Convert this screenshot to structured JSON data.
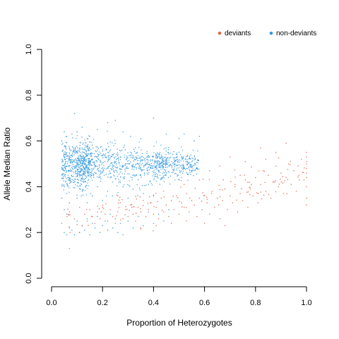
{
  "chart_data": {
    "type": "scatter",
    "xlabel": "Proportion of Heterozygotes",
    "ylabel": "Allele Median Ratio",
    "xlim": [
      0,
      1
    ],
    "ylim": [
      0,
      1
    ],
    "x_ticks": [
      "0.0",
      "0.2",
      "0.4",
      "0.6",
      "0.8",
      "1.0"
    ],
    "y_ticks": [
      "0.0",
      "0.2",
      "0.4",
      "0.6",
      "0.8",
      "1.0"
    ],
    "grid": false,
    "legend_position": "top-right",
    "series": [
      {
        "name": "deviants",
        "color": "#e8664a",
        "points": [
          [
            0.06,
            0.27
          ],
          [
            0.07,
            0.29
          ],
          [
            0.09,
            0.26
          ],
          [
            0.11,
            0.31
          ],
          [
            0.12,
            0.23
          ],
          [
            0.13,
            0.28
          ],
          [
            0.14,
            0.25
          ],
          [
            0.15,
            0.3
          ],
          [
            0.16,
            0.27
          ],
          [
            0.17,
            0.24
          ],
          [
            0.18,
            0.29
          ],
          [
            0.19,
            0.26
          ],
          [
            0.2,
            0.31
          ],
          [
            0.21,
            0.28
          ],
          [
            0.22,
            0.25
          ],
          [
            0.23,
            0.3
          ],
          [
            0.24,
            0.27
          ],
          [
            0.25,
            0.24
          ],
          [
            0.26,
            0.29
          ],
          [
            0.27,
            0.33
          ],
          [
            0.28,
            0.26
          ],
          [
            0.29,
            0.3
          ],
          [
            0.3,
            0.27
          ],
          [
            0.31,
            0.32
          ],
          [
            0.32,
            0.28
          ],
          [
            0.33,
            0.25
          ],
          [
            0.34,
            0.31
          ],
          [
            0.35,
            0.29
          ],
          [
            0.36,
            0.34
          ],
          [
            0.37,
            0.27
          ],
          [
            0.38,
            0.3
          ],
          [
            0.39,
            0.33
          ],
          [
            0.4,
            0.28
          ],
          [
            0.41,
            0.31
          ],
          [
            0.42,
            0.26
          ],
          [
            0.43,
            0.35
          ],
          [
            0.44,
            0.29
          ],
          [
            0.45,
            0.32
          ],
          [
            0.46,
            0.27
          ],
          [
            0.47,
            0.34
          ],
          [
            0.48,
            0.3
          ],
          [
            0.49,
            0.36
          ],
          [
            0.5,
            0.28
          ],
          [
            0.51,
            0.33
          ],
          [
            0.52,
            0.31
          ],
          [
            0.53,
            0.37
          ],
          [
            0.54,
            0.29
          ],
          [
            0.55,
            0.34
          ],
          [
            0.56,
            0.32
          ],
          [
            0.57,
            0.27
          ],
          [
            0.58,
            0.35
          ],
          [
            0.59,
            0.3
          ],
          [
            0.6,
            0.36
          ],
          [
            0.61,
            0.33
          ],
          [
            0.62,
            0.28
          ],
          [
            0.63,
            0.38
          ],
          [
            0.64,
            0.31
          ],
          [
            0.65,
            0.35
          ],
          [
            0.66,
            0.26
          ],
          [
            0.67,
            0.34
          ],
          [
            0.68,
            0.39
          ],
          [
            0.69,
            0.3
          ],
          [
            0.7,
            0.36
          ],
          [
            0.71,
            0.33
          ],
          [
            0.72,
            0.41
          ],
          [
            0.73,
            0.29
          ],
          [
            0.74,
            0.37
          ],
          [
            0.75,
            0.34
          ],
          [
            0.76,
            0.43
          ],
          [
            0.77,
            0.31
          ],
          [
            0.78,
            0.39
          ],
          [
            0.79,
            0.36
          ],
          [
            0.8,
            0.44
          ],
          [
            0.81,
            0.33
          ],
          [
            0.82,
            0.41
          ],
          [
            0.83,
            0.47
          ],
          [
            0.84,
            0.38
          ],
          [
            0.85,
            0.45
          ],
          [
            0.86,
            0.35
          ],
          [
            0.87,
            0.42
          ],
          [
            0.88,
            0.49
          ],
          [
            0.89,
            0.4
          ],
          [
            0.9,
            0.46
          ],
          [
            0.91,
            0.37
          ],
          [
            0.92,
            0.44
          ],
          [
            0.93,
            0.5
          ],
          [
            0.94,
            0.41
          ],
          [
            0.95,
            0.47
          ],
          [
            0.96,
            0.38
          ],
          [
            0.97,
            0.45
          ],
          [
            0.98,
            0.52
          ],
          [
            0.99,
            0.43
          ],
          [
            1.0,
            0.48
          ],
          [
            1.0,
            0.5
          ],
          [
            1.0,
            0.46
          ],
          [
            1.0,
            0.53
          ],
          [
            1.0,
            0.44
          ],
          [
            1.0,
            0.51
          ],
          [
            1.0,
            0.35
          ],
          [
            1.0,
            0.4
          ],
          [
            1.0,
            0.55
          ],
          [
            1.0,
            0.32
          ],
          [
            0.62,
            0.47
          ],
          [
            0.7,
            0.53
          ],
          [
            0.76,
            0.51
          ],
          [
            0.82,
            0.57
          ],
          [
            0.88,
            0.55
          ],
          [
            0.92,
            0.59
          ],
          [
            0.58,
            0.43
          ],
          [
            0.66,
            0.49
          ],
          [
            0.74,
            0.45
          ],
          [
            0.84,
            0.52
          ],
          [
            0.35,
            0.22
          ],
          [
            0.41,
            0.23
          ],
          [
            0.47,
            0.24
          ],
          [
            0.53,
            0.25
          ],
          [
            0.44,
            0.38
          ],
          [
            0.52,
            0.41
          ],
          [
            0.6,
            0.24
          ],
          [
            0.68,
            0.23
          ]
        ]
      },
      {
        "name": "non-deviants",
        "color": "#3399e0",
        "points": [
          [
            0.04,
            0.24
          ],
          [
            0.05,
            0.2
          ],
          [
            0.06,
            0.19
          ],
          [
            0.07,
            0.22
          ],
          [
            0.05,
            0.3
          ],
          [
            0.04,
            0.35
          ],
          [
            0.06,
            0.28
          ],
          [
            0.05,
            0.4
          ],
          [
            0.07,
            0.33
          ],
          [
            0.06,
            0.37
          ],
          [
            0.08,
            0.21
          ],
          [
            0.09,
            0.19
          ],
          [
            0.1,
            0.25
          ],
          [
            0.11,
            0.2
          ],
          [
            0.12,
            0.23
          ],
          [
            0.13,
            0.21
          ],
          [
            0.14,
            0.26
          ],
          [
            0.15,
            0.19
          ],
          [
            0.16,
            0.24
          ],
          [
            0.17,
            0.22
          ],
          [
            0.18,
            0.27
          ],
          [
            0.19,
            0.2
          ],
          [
            0.2,
            0.23
          ],
          [
            0.21,
            0.25
          ],
          [
            0.22,
            0.21
          ],
          [
            0.23,
            0.28
          ],
          [
            0.24,
            0.22
          ],
          [
            0.25,
            0.26
          ],
          [
            0.26,
            0.2
          ],
          [
            0.27,
            0.24
          ],
          [
            0.28,
            0.19
          ],
          [
            0.3,
            0.25
          ],
          [
            0.32,
            0.22
          ],
          [
            0.34,
            0.27
          ],
          [
            0.36,
            0.23
          ],
          [
            0.38,
            0.29
          ],
          [
            0.4,
            0.24
          ],
          [
            0.42,
            0.28
          ],
          [
            0.44,
            0.25
          ],
          [
            0.46,
            0.3
          ],
          [
            0.1,
            0.35
          ],
          [
            0.12,
            0.38
          ],
          [
            0.14,
            0.33
          ],
          [
            0.16,
            0.36
          ],
          [
            0.18,
            0.4
          ],
          [
            0.2,
            0.34
          ],
          [
            0.22,
            0.38
          ],
          [
            0.24,
            0.42
          ],
          [
            0.26,
            0.36
          ],
          [
            0.28,
            0.4
          ],
          [
            0.3,
            0.35
          ],
          [
            0.32,
            0.39
          ],
          [
            0.34,
            0.43
          ],
          [
            0.36,
            0.37
          ],
          [
            0.38,
            0.41
          ],
          [
            0.4,
            0.36
          ],
          [
            0.09,
            0.72
          ],
          [
            0.12,
            0.66
          ],
          [
            0.1,
            0.64
          ],
          [
            0.22,
            0.68
          ],
          [
            0.25,
            0.69
          ],
          [
            0.31,
            0.62
          ],
          [
            0.4,
            0.7
          ],
          [
            0.45,
            0.63
          ],
          [
            0.05,
            0.64
          ],
          [
            0.06,
            0.62
          ],
          [
            0.04,
            0.6
          ],
          [
            0.08,
            0.63
          ],
          [
            0.15,
            0.62
          ],
          [
            0.18,
            0.65
          ],
          [
            0.28,
            0.64
          ],
          [
            0.35,
            0.61
          ],
          [
            0.52,
            0.63
          ],
          [
            0.56,
            0.6
          ],
          [
            0.5,
            0.61
          ],
          [
            0.58,
            0.62
          ],
          [
            0.07,
            0.13
          ],
          [
            0.3,
            0.48
          ],
          [
            0.45,
            0.46
          ],
          [
            0.55,
            0.47
          ]
        ]
      }
    ]
  },
  "legend": [
    {
      "name": "deviants",
      "color": "#e8664a"
    },
    {
      "name": "non-deviants",
      "color": "#3399e0"
    }
  ]
}
